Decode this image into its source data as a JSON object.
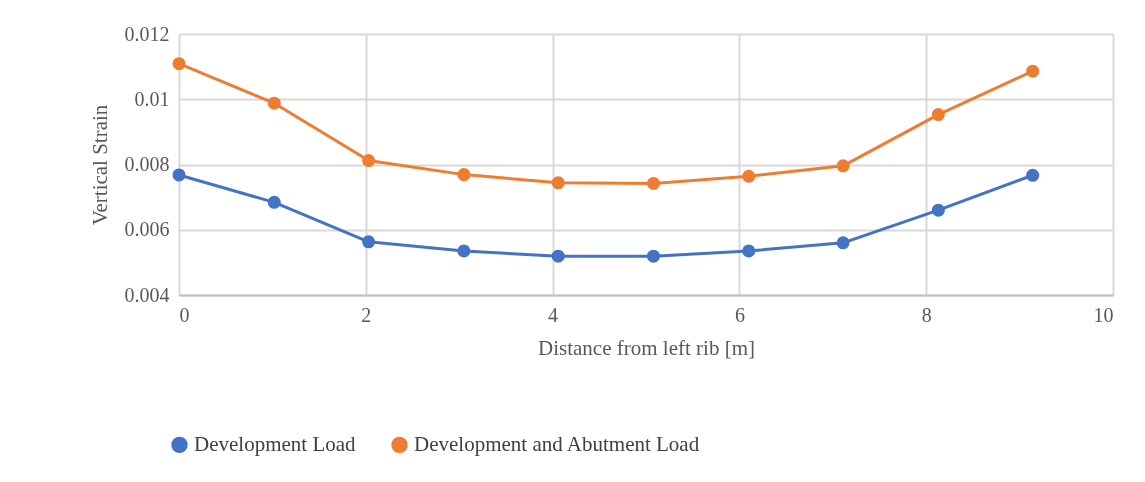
{
  "chart_data": {
    "type": "line",
    "xlabel": "Distance from left rib [m]",
    "ylabel": "Vertical Strain",
    "xlim": [
      0,
      10
    ],
    "xticks": [
      0,
      2,
      4,
      6,
      8,
      10
    ],
    "ylim": [
      0.004,
      0.012
    ],
    "yticks": [
      0.004,
      0.006,
      0.008,
      0.01,
      0.012
    ],
    "grid": true,
    "legend": "bottom",
    "marker": "circle",
    "line_style": "solid",
    "x": [
      0,
      1.02,
      2.03,
      3.05,
      4.06,
      5.08,
      6.1,
      7.11,
      8.13,
      9.14
    ],
    "series": [
      {
        "name": "Development Load",
        "color": "#4472c4",
        "values": [
          0.00768,
          0.00684,
          0.00563,
          0.00535,
          0.00519,
          0.00519,
          0.00535,
          0.0056,
          0.0066,
          0.00767
        ]
      },
      {
        "name": "Development and Abutment Load",
        "color": "#ed7d31",
        "values": [
          0.01109,
          0.00988,
          0.00812,
          0.00769,
          0.00744,
          0.00742,
          0.00764,
          0.00796,
          0.00953,
          0.01086
        ]
      }
    ]
  }
}
